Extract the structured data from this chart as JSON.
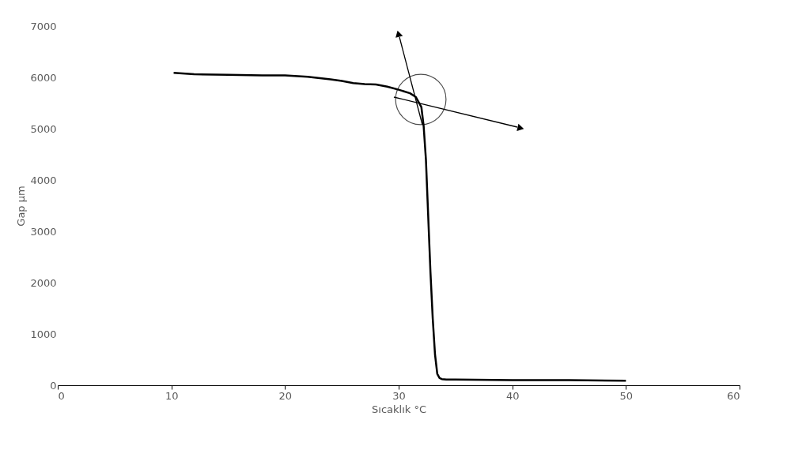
{
  "chart_data": {
    "type": "line",
    "xlabel": "Sıcaklık °C",
    "ylabel": "Gap µm",
    "xlim": [
      0,
      60
    ],
    "xticks": [
      0,
      10,
      20,
      30,
      40,
      50,
      60
    ],
    "ylim": [
      0,
      7000
    ],
    "yticks": [
      0,
      1000,
      2000,
      3000,
      4000,
      5000,
      6000,
      7000
    ],
    "grid": false,
    "marker": "none",
    "line_style": "solid",
    "series": [
      {
        "color": "#000000",
        "x": [
          10.2,
          12,
          15,
          18,
          20,
          22,
          24,
          25,
          26,
          27,
          28,
          29,
          30,
          31,
          31.5,
          32,
          32.2,
          32.4,
          32.6,
          32.8,
          33,
          33.2,
          33.4,
          33.6,
          33.8,
          34.2,
          35,
          40,
          45,
          50
        ],
        "values": [
          6090,
          6060,
          6050,
          6040,
          6040,
          6010,
          5960,
          5930,
          5890,
          5870,
          5860,
          5820,
          5760,
          5690,
          5620,
          5420,
          5050,
          4400,
          3300,
          2200,
          1300,
          600,
          220,
          140,
          120,
          110,
          110,
          100,
          100,
          90
        ]
      }
    ]
  }
}
